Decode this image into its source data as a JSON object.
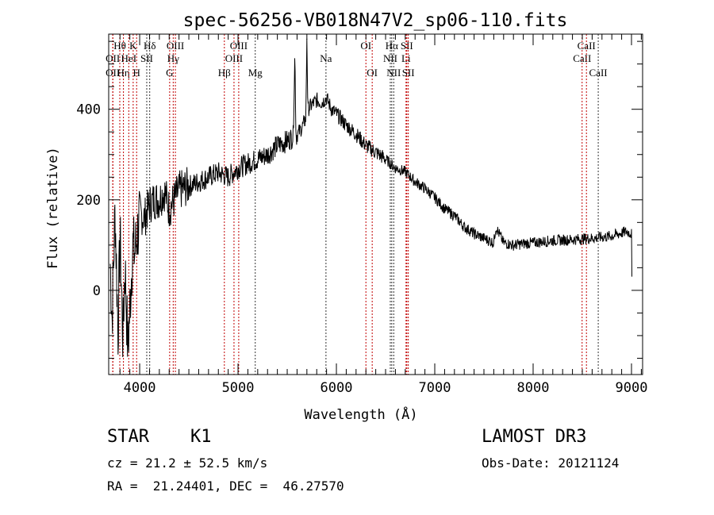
{
  "chart_data": {
    "type": "line",
    "title": "spec-56256-VB018N47V2_sp06-110.fits",
    "xlabel": "Wavelength (Å)",
    "ylabel": "Flux (relative)",
    "xlim": [
      3685,
      9113
    ],
    "ylim": [
      -186,
      566
    ],
    "xticks": [
      4000,
      5000,
      6000,
      7000,
      8000,
      9000
    ],
    "yticks": [
      0,
      200,
      400
    ],
    "series": [
      {
        "name": "flux",
        "x": [
          3700,
          3720,
          3750,
          3780,
          3800,
          3830,
          3850,
          3880,
          3900,
          3930,
          3950,
          3980,
          4000,
          4050,
          4100,
          4150,
          4200,
          4250,
          4300,
          4350,
          4400,
          4500,
          4600,
          4700,
          4800,
          4900,
          5000,
          5100,
          5200,
          5300,
          5400,
          5500,
          5560,
          5577,
          5590,
          5650,
          5690,
          5700,
          5710,
          5750,
          5800,
          5850,
          5900,
          5950,
          6000,
          6100,
          6200,
          6300,
          6400,
          6500,
          6600,
          6700,
          6800,
          6900,
          7000,
          7100,
          7200,
          7300,
          7400,
          7500,
          7600,
          7620,
          7700,
          7800,
          7900,
          8000,
          8200,
          8400,
          8600,
          8800,
          8950,
          9000,
          9005
        ],
        "y": [
          60,
          -60,
          180,
          -90,
          120,
          -110,
          60,
          -130,
          -40,
          100,
          80,
          130,
          170,
          160,
          190,
          200,
          200,
          220,
          180,
          200,
          220,
          230,
          240,
          250,
          260,
          250,
          270,
          280,
          290,
          300,
          320,
          330,
          340,
          520,
          340,
          360,
          380,
          560,
          400,
          410,
          420,
          415,
          425,
          400,
          390,
          365,
          345,
          320,
          305,
          290,
          270,
          262,
          240,
          225,
          205,
          180,
          165,
          140,
          125,
          115,
          105,
          140,
          105,
          100,
          103,
          105,
          110,
          112,
          115,
          120,
          130,
          125,
          0
        ]
      }
    ]
  },
  "lines": [
    {
      "name": "OII",
      "w": 3727,
      "row": 2,
      "red": true
    },
    {
      "name": "OII",
      "w": 3727,
      "row": 3,
      "red": true
    },
    {
      "name": "Hθ",
      "w": 3798,
      "row": 1,
      "red": true
    },
    {
      "name": "Hη",
      "w": 3835,
      "row": 3,
      "red": true
    },
    {
      "name": "HeI",
      "w": 3889,
      "row": 2,
      "red": true
    },
    {
      "name": "K",
      "w": 3934,
      "row": 1,
      "red": true
    },
    {
      "name": "H",
      "w": 3969,
      "row": 3,
      "red": true
    },
    {
      "name": "SII",
      "w": 4072,
      "row": 2,
      "red": false
    },
    {
      "name": "Hδ",
      "w": 4102,
      "row": 1,
      "red": false
    },
    {
      "name": "G",
      "w": 4305,
      "row": 3,
      "red": true
    },
    {
      "name": "Hγ",
      "w": 4341,
      "row": 2,
      "red": true
    },
    {
      "name": "OIII",
      "w": 4363,
      "row": 1,
      "red": true
    },
    {
      "name": "Hβ",
      "w": 4861,
      "row": 3,
      "red": true
    },
    {
      "name": "OIII",
      "w": 4959,
      "row": 2,
      "red": true
    },
    {
      "name": "OIII",
      "w": 5007,
      "row": 1,
      "red": true
    },
    {
      "name": "Mg",
      "w": 5175,
      "row": 3,
      "red": false
    },
    {
      "name": "Na",
      "w": 5894,
      "row": 2,
      "red": false
    },
    {
      "name": "OI",
      "w": 6300,
      "row": 1,
      "red": true
    },
    {
      "name": "OI",
      "w": 6364,
      "row": 3,
      "red": true
    },
    {
      "name": "NII",
      "w": 6548,
      "row": 2,
      "red": false
    },
    {
      "name": "Hα",
      "w": 6563,
      "row": 1,
      "red": false
    },
    {
      "name": "NII",
      "w": 6583,
      "row": 3,
      "red": false
    },
    {
      "name": "Li",
      "w": 6708,
      "row": 2,
      "red": true
    },
    {
      "name": "SII",
      "w": 6716,
      "row": 1,
      "red": true
    },
    {
      "name": "SII",
      "w": 6731,
      "row": 3,
      "red": true
    },
    {
      "name": "CaII",
      "w": 8498,
      "row": 2,
      "red": true
    },
    {
      "name": "CaII",
      "w": 8542,
      "row": 1,
      "red": true
    },
    {
      "name": "CaII",
      "w": 8662,
      "row": 3,
      "red": false
    }
  ],
  "info": {
    "class": "STAR",
    "subclass": "K1",
    "cz": "cz = 21.2 ± 52.5 km/s",
    "radec": "RA =  21.24401, DEC =  46.27570",
    "survey": "LAMOST DR3",
    "obsdate": "Obs-Date: 20121124"
  }
}
